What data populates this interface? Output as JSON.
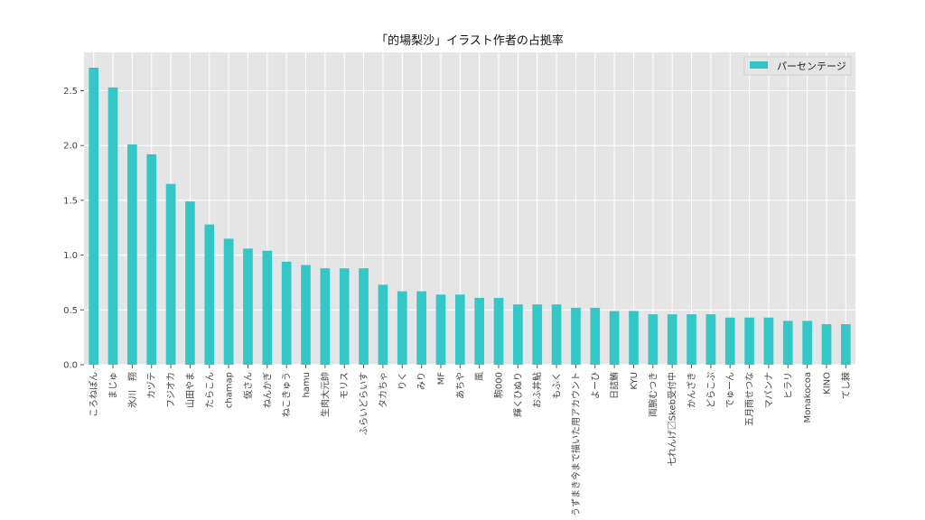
{
  "chart_data": {
    "type": "bar",
    "title": "「的場梨沙」イラスト作者の占拠率",
    "xlabel": "",
    "ylabel": "",
    "ylim": [
      0,
      2.85
    ],
    "yticks": [
      "0.0",
      "0.5",
      "1.0",
      "1.5",
      "2.0",
      "2.5"
    ],
    "grid": true,
    "legend_position": "top-right",
    "categories": [
      "ころねぽん",
      "まじゅ",
      "氷川　翔",
      "カヅテ",
      "フジオカ",
      "山田やま",
      "たらこん",
      "chamap",
      "仮さん",
      "ねんかぎ",
      "ねこきゅう",
      "hamu",
      "生肉大元帥",
      "モリス",
      "ふらいどらいす",
      "タカちゃ",
      "りく",
      "みり",
      "MF",
      "あちや",
      "風",
      "駒000",
      "輝くひぬり",
      "おふ丼鮎",
      "もふく",
      "うずまき今まで描いた用アカウント",
      "よーひ",
      "日詰鮪",
      "KYU",
      "両腕むつき",
      "七れんげ〼Skeb受付中",
      "かんざき",
      "どらこぷ",
      "でゅーん",
      "五月雨せつな",
      "マパンナ",
      "ヒラリ",
      "Monakocoa",
      "KINO",
      "てし棘"
    ],
    "series": [
      {
        "name": "パーセンテージ",
        "color": "#33c8c8",
        "values": [
          2.71,
          2.53,
          2.01,
          1.92,
          1.65,
          1.49,
          1.28,
          1.15,
          1.06,
          1.04,
          0.94,
          0.91,
          0.88,
          0.88,
          0.88,
          0.73,
          0.67,
          0.67,
          0.64,
          0.64,
          0.61,
          0.61,
          0.55,
          0.55,
          0.55,
          0.52,
          0.52,
          0.49,
          0.49,
          0.46,
          0.46,
          0.46,
          0.46,
          0.43,
          0.43,
          0.43,
          0.4,
          0.4,
          0.37,
          0.37
        ]
      }
    ]
  },
  "colors": {
    "plot_background": "#e5e5e5",
    "grid": "#ffffff",
    "bar": "#33c8c8"
  }
}
